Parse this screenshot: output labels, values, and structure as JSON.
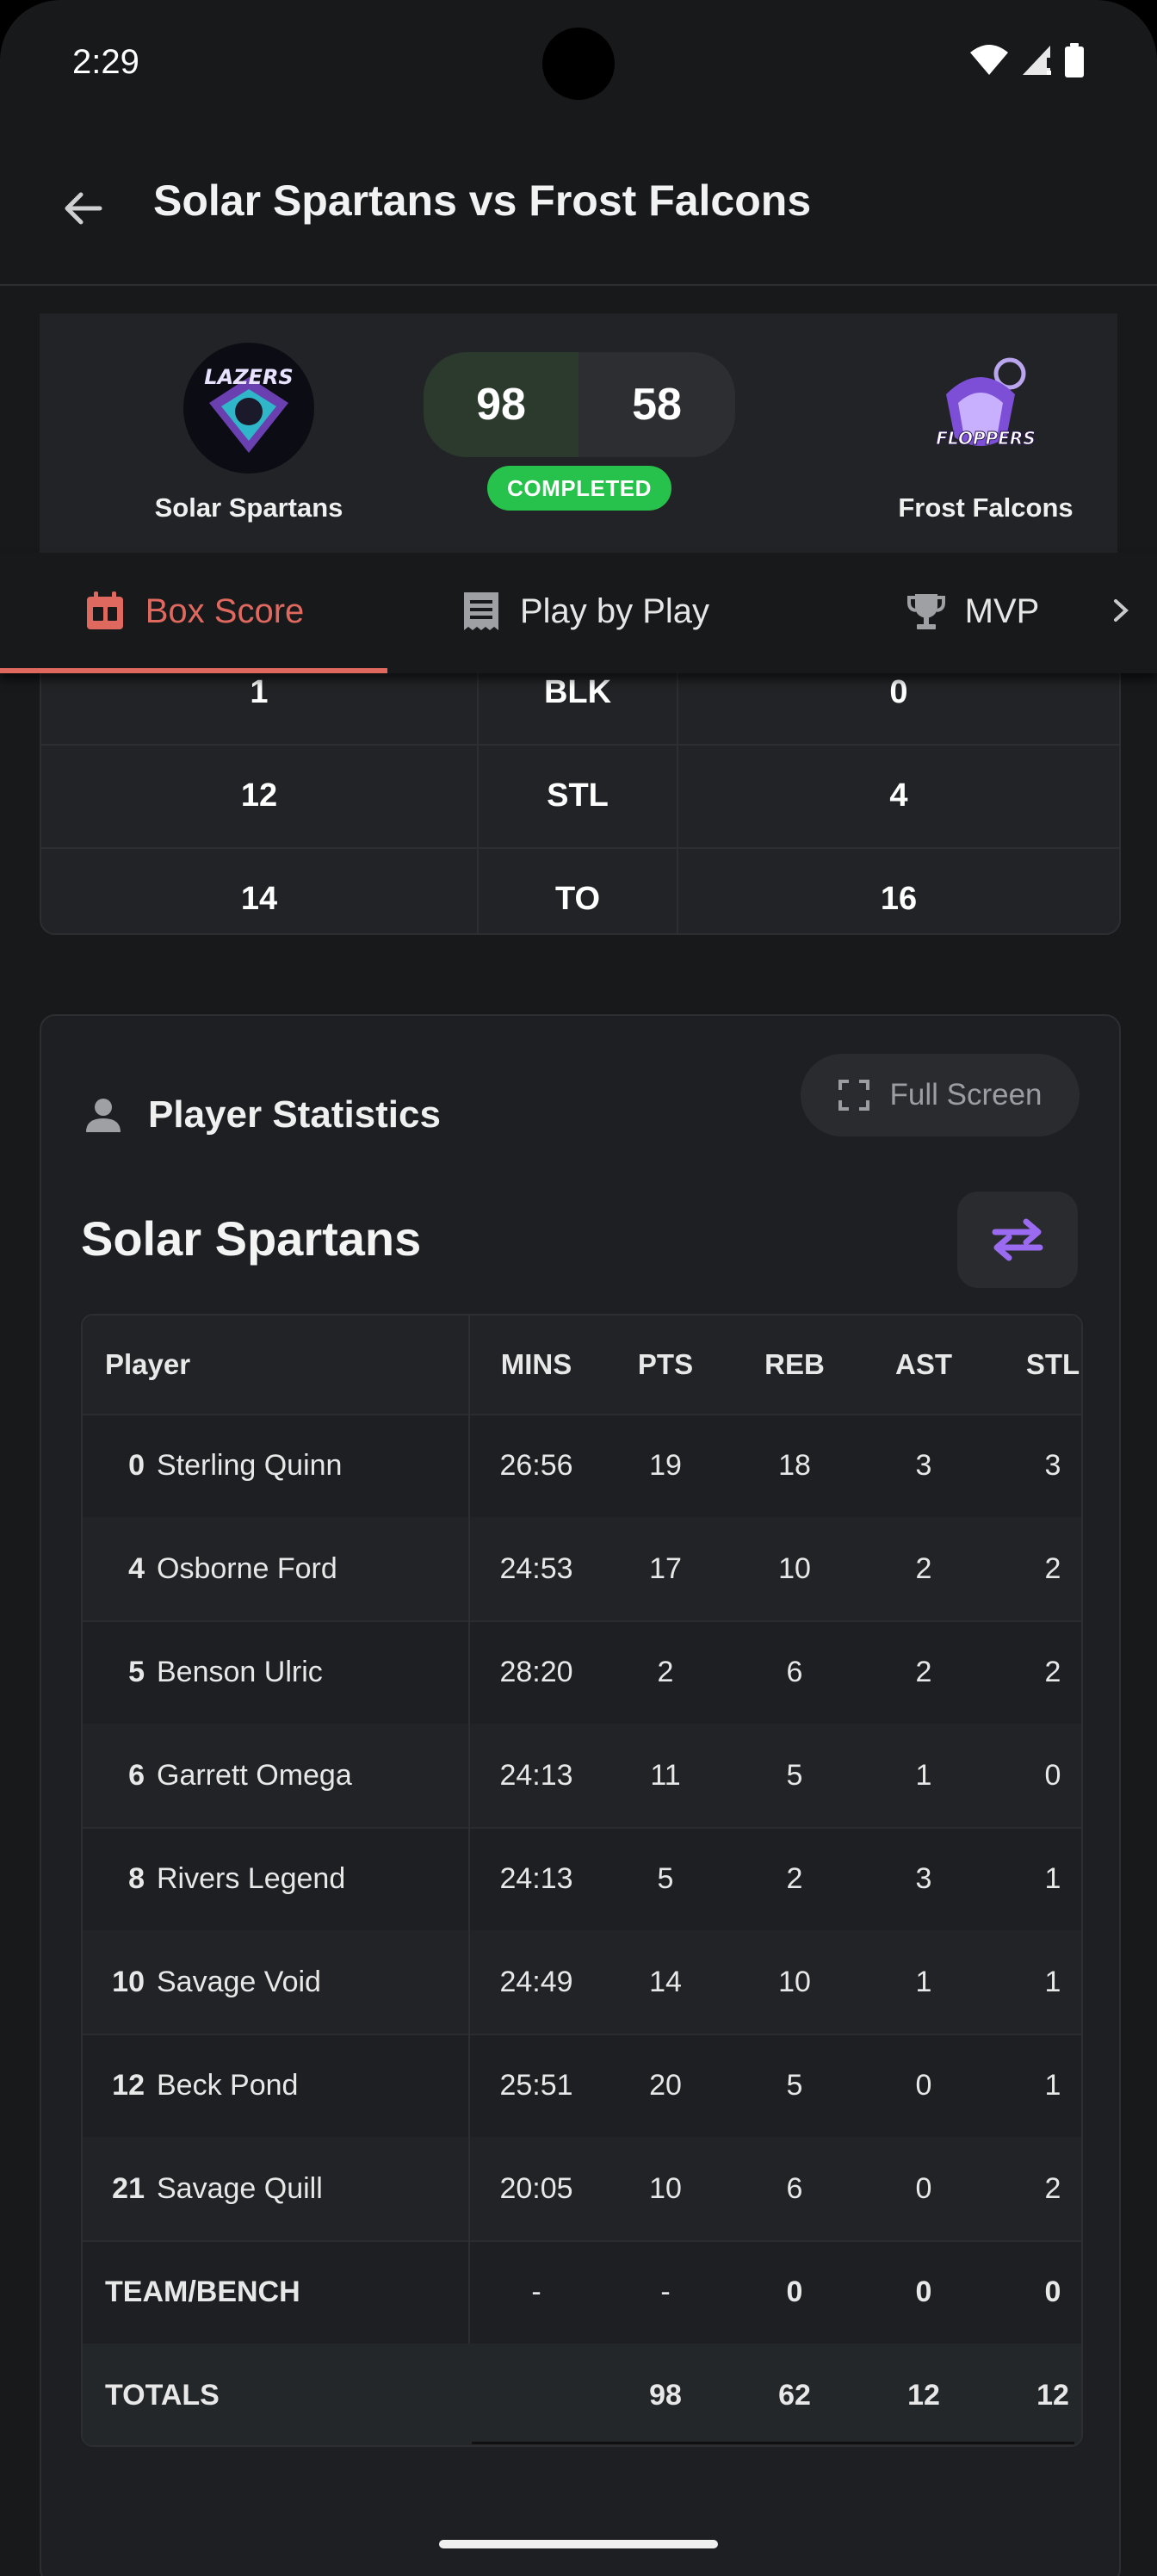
{
  "status": {
    "time": "2:29"
  },
  "header": {
    "title": "Solar Spartans vs Frost Falcons"
  },
  "game": {
    "home": {
      "name": "Solar Spartans",
      "score": "98",
      "logo_text": "LAZERS"
    },
    "away": {
      "name": "Frost Falcons",
      "score": "58",
      "logo_text": "FLOPPERS"
    },
    "status": "COMPLETED"
  },
  "tabs": [
    {
      "label": "Box Score",
      "icon": "calendar-icon",
      "active": true
    },
    {
      "label": "Play by Play",
      "icon": "receipt-icon",
      "active": false
    },
    {
      "label": "MVP",
      "icon": "trophy-icon",
      "active": false
    }
  ],
  "team_stats": {
    "rows": [
      {
        "home": "1",
        "stat": "BLK",
        "away": "0"
      },
      {
        "home": "12",
        "stat": "STL",
        "away": "4"
      },
      {
        "home": "14",
        "stat": "TO",
        "away": "16"
      }
    ]
  },
  "player_stats": {
    "title": "Player Statistics",
    "fullscreen_label": "Full Screen",
    "team_name": "Solar Spartans",
    "columns": [
      "Player",
      "MINS",
      "PTS",
      "REB",
      "AST",
      "STL"
    ],
    "rows": [
      {
        "num": "0",
        "name": "Sterling Quinn",
        "mins": "26:56",
        "pts": "19",
        "reb": "18",
        "ast": "3",
        "stl": "3"
      },
      {
        "num": "4",
        "name": "Osborne Ford",
        "mins": "24:53",
        "pts": "17",
        "reb": "10",
        "ast": "2",
        "stl": "2"
      },
      {
        "num": "5",
        "name": "Benson Ulric",
        "mins": "28:20",
        "pts": "2",
        "reb": "6",
        "ast": "2",
        "stl": "2"
      },
      {
        "num": "6",
        "name": "Garrett Omega",
        "mins": "24:13",
        "pts": "11",
        "reb": "5",
        "ast": "1",
        "stl": "0"
      },
      {
        "num": "8",
        "name": "Rivers Legend",
        "mins": "24:13",
        "pts": "5",
        "reb": "2",
        "ast": "3",
        "stl": "1"
      },
      {
        "num": "10",
        "name": "Savage Void",
        "mins": "24:49",
        "pts": "14",
        "reb": "10",
        "ast": "1",
        "stl": "1"
      },
      {
        "num": "12",
        "name": "Beck Pond",
        "mins": "25:51",
        "pts": "20",
        "reb": "5",
        "ast": "0",
        "stl": "1"
      },
      {
        "num": "21",
        "name": "Savage Quill",
        "mins": "20:05",
        "pts": "10",
        "reb": "6",
        "ast": "0",
        "stl": "2"
      }
    ],
    "team_bench": {
      "label": "TEAM/BENCH",
      "mins": "-",
      "pts": "-",
      "reb": "0",
      "ast": "0",
      "stl": "0"
    },
    "totals": {
      "label": "TOTALS",
      "mins": "",
      "pts": "98",
      "reb": "62",
      "ast": "12",
      "stl": "12"
    }
  },
  "colors": {
    "accent": "#e0695f",
    "completed": "#27c24c",
    "swap_icon": "#9a6bf0"
  }
}
